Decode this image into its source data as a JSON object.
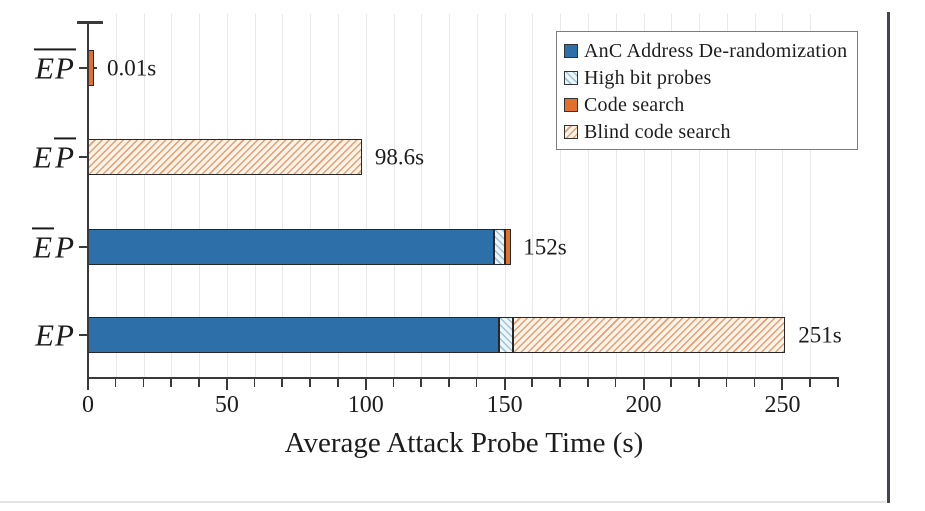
{
  "figure": {
    "xlabel": "Average Attack Probe Time (s)"
  },
  "chart_data": {
    "type": "bar",
    "orientation": "horizontal",
    "title": "",
    "xlabel": "Average Attack Probe Time (s)",
    "ylabel": "",
    "xlim": [
      0,
      270
    ],
    "x_major_ticks": [
      0,
      50,
      100,
      150,
      200,
      250
    ],
    "x_minor_tick_step": 10,
    "grid": "vertical-minor",
    "legend_position": "top-right",
    "categories": [
      {
        "text": "E̅P̅",
        "label_parts": [
          {
            "text": "EP",
            "overline": true
          }
        ]
      },
      {
        "text": "EP̅",
        "label_parts": [
          {
            "text": "E",
            "overline": false
          },
          {
            "text": "P",
            "overline": true
          }
        ]
      },
      {
        "text": "E̅P",
        "label_parts": [
          {
            "text": "E",
            "overline": true
          },
          {
            "text": "P",
            "overline": false
          }
        ]
      },
      {
        "text": "EP",
        "label_parts": [
          {
            "text": "EP",
            "overline": false
          }
        ]
      }
    ],
    "series": [
      {
        "key": "anc",
        "name": "AnC Address De-randomization",
        "style": "solid",
        "color": "#2d6fa8"
      },
      {
        "key": "high",
        "name": "High bit probes",
        "style": "hatch",
        "hatch_dir": "\\",
        "bg": "#eef5f9",
        "stripe": "#9cc3d6"
      },
      {
        "key": "code",
        "name": "Code search",
        "style": "solid",
        "color": "#e2702d"
      },
      {
        "key": "blind",
        "name": "Blind code search",
        "style": "hatch",
        "hatch_dir": "/",
        "bg": "#fdf3e9",
        "stripe": "#e59e6f"
      }
    ],
    "rows": [
      {
        "category": "E̅P̅",
        "segments": [
          {
            "series": "code",
            "value": 0.01
          }
        ],
        "total": 0.01,
        "total_label": "0.01s"
      },
      {
        "category": "EP̅",
        "segments": [
          {
            "series": "blind",
            "value": 98.6
          }
        ],
        "total": 98.6,
        "total_label": "98.6s"
      },
      {
        "category": "E̅P",
        "segments": [
          {
            "series": "anc",
            "value": 146
          },
          {
            "series": "high",
            "value": 4
          },
          {
            "series": "code",
            "value": 2
          }
        ],
        "total": 152,
        "total_label": "152s"
      },
      {
        "category": "EP",
        "segments": [
          {
            "series": "anc",
            "value": 148
          },
          {
            "series": "high",
            "value": 5
          },
          {
            "series": "blind",
            "value": 98
          }
        ],
        "total": 251,
        "total_label": "251s"
      }
    ]
  },
  "colors": {
    "axis": "#3a3a3a",
    "grid": "#e9e9e9",
    "bar_border": "#272727",
    "text": "#1c1c1c",
    "legend_border": "#7d7d7d",
    "divider": "#41474d"
  }
}
